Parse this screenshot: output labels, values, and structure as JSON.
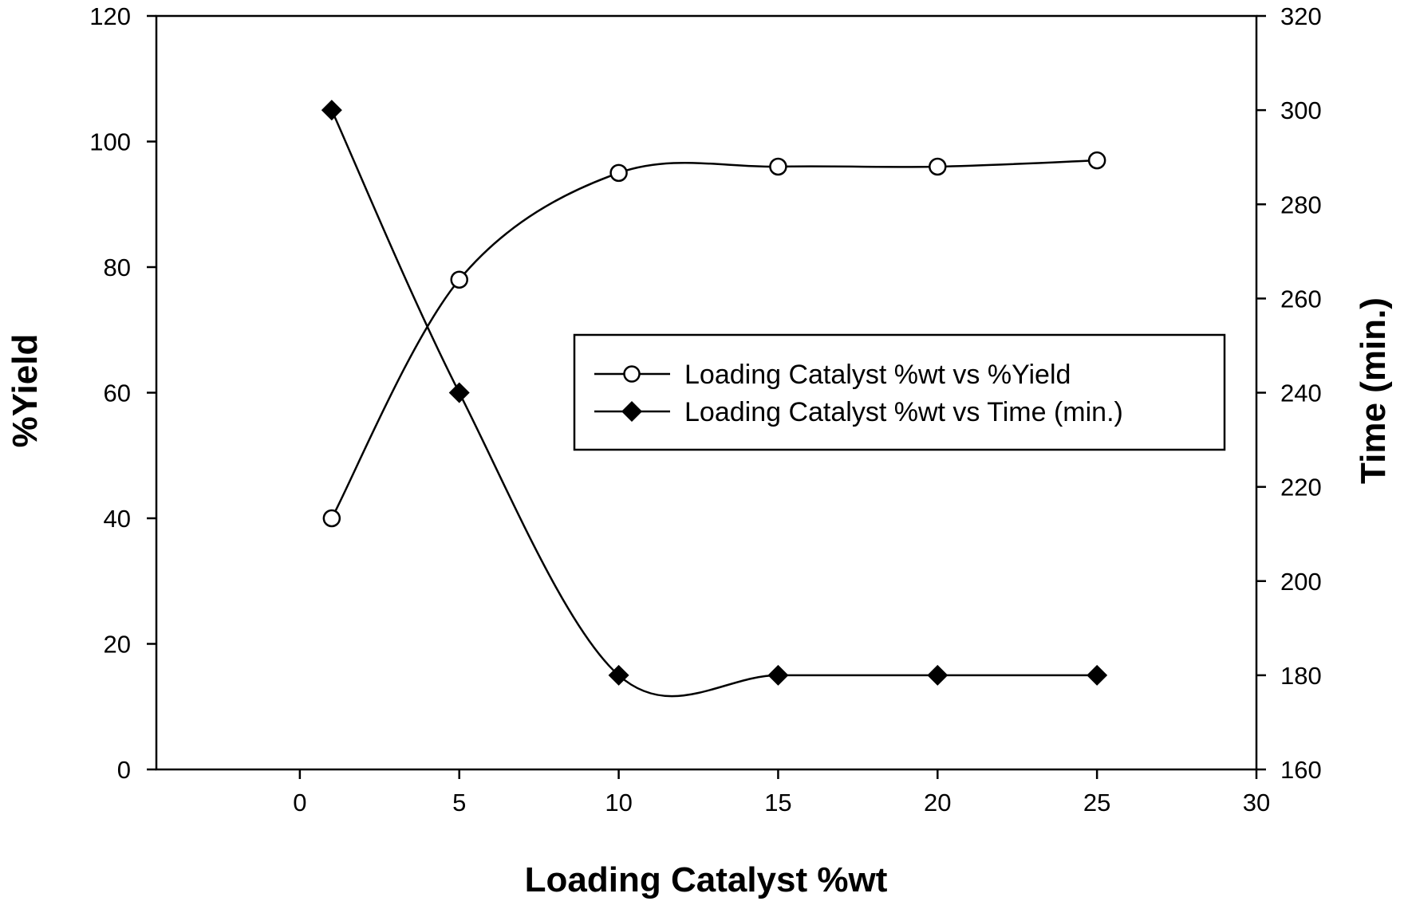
{
  "chart_data": {
    "type": "line",
    "xlabel": "Loading Catalyst %wt",
    "ylabel_left": "%Yield",
    "ylabel_right": "Time (min.)",
    "x_axis": {
      "min": -4.5,
      "max": 30,
      "ticks": [
        "0",
        "5",
        "10",
        "15",
        "20",
        "25",
        "30"
      ]
    },
    "y_left": {
      "min": 0,
      "max": 120,
      "ticks": [
        "0",
        "20",
        "40",
        "60",
        "80",
        "100",
        "120"
      ]
    },
    "y_right": {
      "min": 160,
      "max": 320,
      "ticks": [
        "160",
        "180",
        "200",
        "220",
        "240",
        "260",
        "280",
        "300",
        "320"
      ]
    },
    "grid": false,
    "legend_position": "center-right",
    "series": [
      {
        "name": "Loading Catalyst %wt vs %Yield",
        "axis": "left",
        "marker": "open-circle",
        "color": "#000000",
        "x": [
          1,
          5,
          10,
          15,
          20,
          25
        ],
        "y": [
          40,
          78,
          95,
          96,
          96,
          97
        ]
      },
      {
        "name": "Loading Catalyst %wt vs Time (min.)",
        "axis": "right",
        "marker": "filled-diamond",
        "color": "#000000",
        "x": [
          1,
          5,
          10,
          15,
          20,
          25
        ],
        "y": [
          300,
          240,
          180,
          180,
          180,
          180
        ]
      }
    ]
  }
}
